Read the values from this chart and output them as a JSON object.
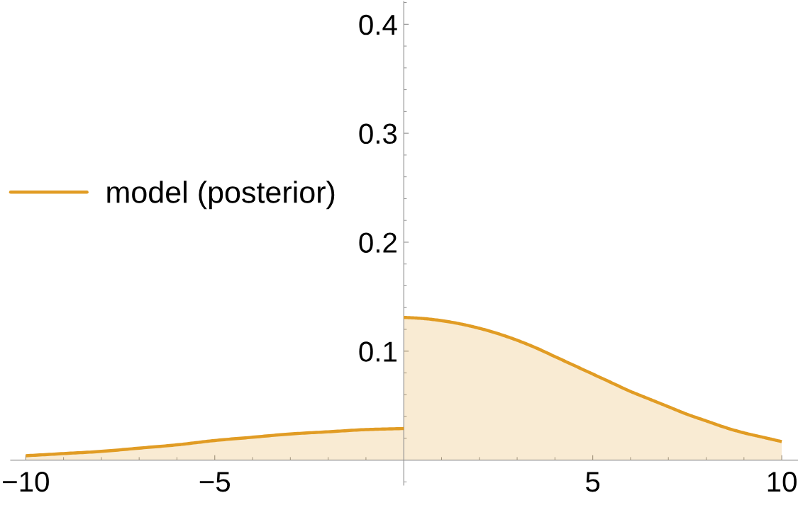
{
  "chart_data": {
    "type": "area",
    "series": [
      {
        "name": "model (posterior)",
        "color": "#e19c24",
        "x": [
          -10,
          -9,
          -8,
          -7,
          -6,
          -5,
          -4,
          -3,
          -2,
          -1,
          0
        ],
        "values": [
          0.004,
          0.006,
          0.008,
          0.011,
          0.014,
          0.018,
          0.021,
          0.024,
          0.026,
          0.028,
          0.029
        ]
      },
      {
        "color": "#e19c24",
        "x": [
          0,
          0.5,
          1,
          1.5,
          2,
          2.5,
          3,
          3.5,
          4,
          4.5,
          5,
          5.5,
          6,
          6.5,
          7,
          7.5,
          8,
          8.5,
          9,
          9.5,
          10
        ],
        "values": [
          0.131,
          0.13,
          0.128,
          0.125,
          0.121,
          0.116,
          0.11,
          0.103,
          0.095,
          0.087,
          0.079,
          0.071,
          0.063,
          0.056,
          0.049,
          0.042,
          0.036,
          0.03,
          0.025,
          0.021,
          0.017
        ]
      }
    ],
    "xlim": [
      -10.4,
      10.43
    ],
    "ylim": [
      -0.023,
      0.421
    ],
    "xticks": [
      {
        "value": -10,
        "label": "−10"
      },
      {
        "value": -9,
        "label": null
      },
      {
        "value": -8,
        "label": null
      },
      {
        "value": -7,
        "label": null
      },
      {
        "value": -6,
        "label": null
      },
      {
        "value": -5,
        "label": "−5"
      },
      {
        "value": -4,
        "label": null
      },
      {
        "value": -3,
        "label": null
      },
      {
        "value": -2,
        "label": null
      },
      {
        "value": -1,
        "label": null
      },
      {
        "value": 1,
        "label": null
      },
      {
        "value": 2,
        "label": null
      },
      {
        "value": 3,
        "label": null
      },
      {
        "value": 4,
        "label": null
      },
      5,
      {
        "value": 6,
        "label": null
      },
      {
        "value": 7,
        "label": null
      },
      {
        "value": 8,
        "label": null
      },
      {
        "value": 9,
        "label": null
      },
      10
    ],
    "yticks": [
      {
        "value": -0.02,
        "label": null
      },
      {
        "value": 0.02,
        "label": null
      },
      {
        "value": 0.04,
        "label": null
      },
      {
        "value": 0.06,
        "label": null
      },
      {
        "value": 0.08,
        "label": null
      },
      0.1,
      {
        "value": 0.12,
        "label": null
      },
      {
        "value": 0.14,
        "label": null
      },
      {
        "value": 0.16,
        "label": null
      },
      {
        "value": 0.18,
        "label": null
      },
      0.2,
      {
        "value": 0.22,
        "label": null
      },
      {
        "value": 0.24,
        "label": null
      },
      {
        "value": 0.26,
        "label": null
      },
      {
        "value": 0.28,
        "label": null
      },
      0.3,
      {
        "value": 0.32,
        "label": null
      },
      {
        "value": 0.34,
        "label": null
      },
      {
        "value": 0.36,
        "label": null
      },
      {
        "value": 0.38,
        "label": null
      },
      0.4,
      {
        "value": 0.42,
        "label": null
      }
    ],
    "legend": "left"
  }
}
